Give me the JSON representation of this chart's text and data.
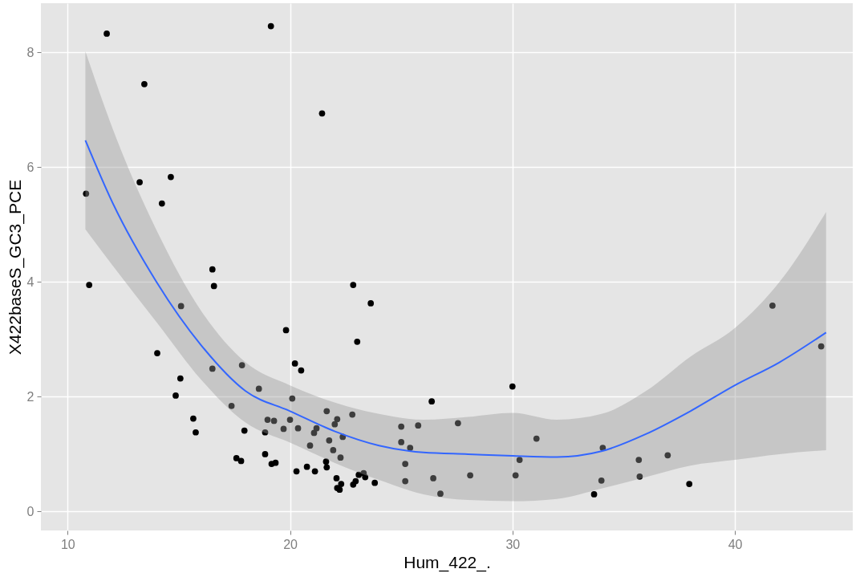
{
  "chart_data": {
    "type": "scatter",
    "xlabel": "Hum_422_.",
    "ylabel": "X422baseS_GC3_PCE",
    "xlim": [
      8.8,
      45.3
    ],
    "ylim": [
      -0.33,
      8.86
    ],
    "xticks": [
      10,
      20,
      30,
      40
    ],
    "yticks": [
      0,
      2,
      4,
      6,
      8
    ],
    "grid": true,
    "series": [
      {
        "marker": "circle",
        "color": "#000000",
        "x": [
          10.83,
          10.97,
          11.76,
          13.24,
          13.45,
          14.24,
          14.64,
          14.03,
          14.86,
          15.07,
          15.1,
          15.65,
          15.76,
          16.51,
          16.58,
          16.51,
          17.37,
          17.59,
          17.8,
          17.84,
          17.95,
          18.6,
          18.88,
          18.88,
          18.99,
          19.17,
          19.28,
          19.35,
          19.14,
          19.71,
          19.82,
          20.0,
          20.1,
          20.22,
          20.29,
          20.36,
          20.5,
          20.76,
          20.9,
          21.08,
          21.12,
          21.19,
          21.44,
          21.65,
          21.62,
          21.65,
          21.76,
          21.94,
          22.01,
          22.09,
          22.12,
          22.12,
          22.23,
          22.27,
          22.3,
          22.37,
          22.8,
          22.84,
          22.84,
          22.95,
          23.02,
          23.09,
          23.31,
          23.38,
          23.63,
          23.81,
          25.0,
          25.0,
          25.18,
          25.18,
          25.4,
          25.76,
          26.37,
          26.44,
          26.76,
          27.55,
          28.1,
          30.0,
          30.14,
          30.32,
          31.08,
          33.67,
          34.0,
          34.06,
          35.68,
          35.72,
          36.98,
          37.95,
          41.69,
          43.88
        ],
        "values": [
          5.54,
          3.95,
          8.33,
          5.74,
          7.45,
          5.37,
          5.83,
          2.76,
          2.02,
          2.32,
          3.58,
          1.62,
          1.38,
          4.22,
          3.93,
          2.49,
          1.84,
          0.93,
          0.88,
          2.55,
          1.41,
          2.14,
          1.38,
          1.0,
          1.6,
          0.83,
          1.58,
          0.85,
          8.46,
          1.44,
          3.16,
          1.6,
          1.97,
          2.58,
          0.7,
          1.45,
          2.46,
          0.78,
          1.15,
          1.37,
          0.7,
          1.45,
          6.94,
          1.75,
          0.87,
          0.77,
          1.24,
          1.07,
          1.52,
          0.58,
          1.61,
          0.41,
          0.38,
          0.94,
          0.48,
          1.3,
          1.69,
          3.95,
          0.47,
          0.53,
          2.96,
          0.64,
          0.67,
          0.6,
          3.63,
          0.5,
          1.48,
          1.21,
          0.83,
          0.53,
          1.11,
          1.5,
          1.92,
          0.58,
          0.31,
          1.54,
          0.63,
          2.18,
          0.63,
          0.9,
          1.27,
          0.3,
          0.54,
          1.11,
          0.9,
          0.61,
          0.98,
          0.48,
          3.59,
          2.88
        ]
      },
      {
        "type": "line",
        "color": "#3366ff",
        "x": [
          10.8,
          12,
          14,
          16,
          18,
          20,
          22,
          24,
          26,
          28,
          30,
          32,
          34,
          36,
          38,
          40,
          42,
          44.1
        ],
        "values": [
          6.47,
          5.4,
          4.0,
          2.9,
          2.1,
          1.75,
          1.4,
          1.15,
          1.03,
          1.0,
          0.97,
          0.95,
          1.05,
          1.35,
          1.75,
          2.2,
          2.6,
          3.12
        ],
        "lower": [
          4.92,
          4.3,
          3.3,
          2.3,
          1.55,
          1.2,
          0.85,
          0.55,
          0.3,
          0.2,
          0.18,
          0.22,
          0.4,
          0.6,
          0.8,
          0.9,
          1.0,
          1.07
        ],
        "upper": [
          8.02,
          6.7,
          4.9,
          3.5,
          2.6,
          2.2,
          1.9,
          1.7,
          1.6,
          1.65,
          1.72,
          1.6,
          1.7,
          2.1,
          2.7,
          3.2,
          4.0,
          5.22
        ]
      }
    ]
  }
}
